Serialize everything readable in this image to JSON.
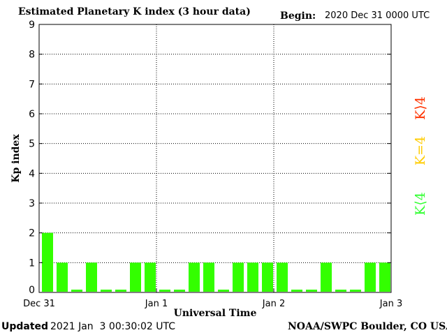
{
  "header": {
    "title": "Estimated Planetary K index (3 hour data)",
    "begin_label": "Begin:",
    "begin_value": "2020 Dec 31 0000 UTC"
  },
  "footer": {
    "updated_label": "Updated",
    "updated_value": "2021 Jan  3 00:30:02 UTC",
    "credit": "NOAA/SWPC Boulder, CO USA"
  },
  "legend": {
    "high": {
      "label": "K⟩4",
      "color": "#ff3300"
    },
    "equal": {
      "label": "K=4",
      "color": "#ffcc00"
    },
    "low": {
      "label": "K⟨4",
      "color": "#33ff33"
    }
  },
  "chart_data": {
    "type": "bar",
    "title": "Estimated Planetary K index (3 hour data)",
    "xlabel": "Universal Time",
    "ylabel": "Kp index",
    "ylim": [
      0,
      9
    ],
    "yticks": [
      "0",
      "1",
      "2",
      "3",
      "4",
      "5",
      "6",
      "7",
      "8",
      "9"
    ],
    "xticks": [
      "Dec 31",
      "Jan 1",
      "Jan 2",
      "Jan 3"
    ],
    "grid": true,
    "bar_color": "#33ff00",
    "values": [
      2,
      1,
      0,
      1,
      0,
      0,
      1,
      1,
      0,
      0,
      1,
      1,
      0,
      1,
      1,
      1,
      1,
      0,
      0,
      1,
      0,
      0,
      1,
      1
    ]
  }
}
